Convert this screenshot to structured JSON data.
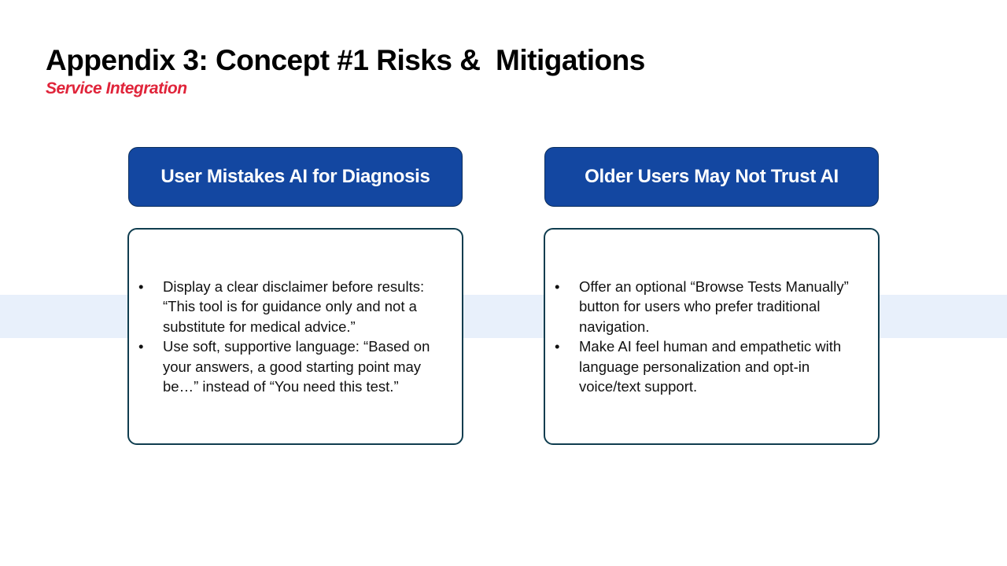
{
  "slide": {
    "title": "Appendix 3: Concept #1 Risks &  Mitigations",
    "subtitle": "Service Integration"
  },
  "colors": {
    "subtitle": "#e0243a",
    "header_fill": "#1347a1",
    "band": "#e8f0fb",
    "box_border": "#0f3d4f"
  },
  "columns": [
    {
      "heading": "User Mistakes AI for Diagnosis",
      "bullet_glyph": "•",
      "bullets": [
        "Display a clear disclaimer before results: “This tool is for guidance only and not a substitute for medical advice.”",
        "Use soft, supportive language: “Based on your answers, a good starting point may be…” instead of “You need this test.”"
      ]
    },
    {
      "heading": "Older Users May Not Trust AI",
      "bullet_glyph": "•",
      "bullets": [
        "Offer an optional “Browse Tests Manually” button for users who prefer traditional navigation.",
        "Make AI feel human and empathetic with language personalization and opt-in voice/text support."
      ]
    }
  ]
}
